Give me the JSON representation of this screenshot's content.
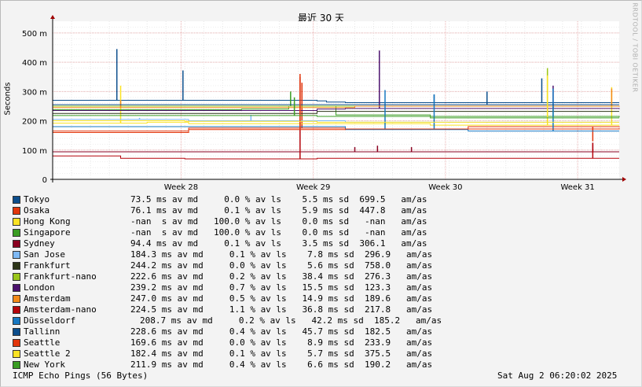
{
  "chart_data": {
    "type": "line",
    "title": "最近 30 天",
    "ylabel": "Seconds",
    "vertical_tag": "RRDTOOL / TOBI OETIKER",
    "y_ticks": [
      "0",
      "100 m",
      "200 m",
      "300 m",
      "400 m",
      "500 m"
    ],
    "ylim": [
      0,
      0.54
    ],
    "x_ticks": [
      "Week 28",
      "Week 29",
      "Week 30",
      "Week 31"
    ],
    "x_tick_days": [
      6.8,
      13.8,
      20.8,
      27.8
    ],
    "xlim_days": [
      0,
      30
    ],
    "grid": true,
    "series": [
      {
        "name": "Tokyo",
        "color": "#0c4e8c",
        "stats": "73.5 ms av md     0.0 % av ls    5.5 ms sd  699.5   am/as",
        "points": [
          [
            0,
            0.27
          ],
          [
            7,
            0.27
          ],
          [
            7.2,
            0.27
          ],
          [
            14,
            0.268
          ],
          [
            14.5,
            0.264
          ],
          [
            15.5,
            0.262
          ],
          [
            20,
            0.262
          ],
          [
            26,
            0.262
          ],
          [
            30,
            0.262
          ]
        ],
        "spikes": [
          [
            3.4,
            0.445
          ],
          [
            6.9,
            0.372
          ],
          [
            20.2,
            0.29
          ],
          [
            25.9,
            0.345
          ]
        ]
      },
      {
        "name": "Osaka",
        "color": "#e2360c",
        "stats": "76.1 ms av md     0.1 % av ls    5.9 ms sd  447.8   am/as",
        "points": [
          [
            0,
            0.16
          ],
          [
            7,
            0.16
          ],
          [
            7.2,
            0.175
          ],
          [
            14,
            0.175
          ],
          [
            15.5,
            0.172
          ],
          [
            22,
            0.18
          ],
          [
            30,
            0.178
          ]
        ],
        "spikes": [
          [
            13.2,
            0.33
          ],
          [
            28.6,
            0.13
          ]
        ]
      },
      {
        "name": "Hong Kong",
        "color": "#fbe324",
        "stats": "-nan  s av md   100.0 % av ls    0.0 ms sd   -nan   am/as",
        "points": [
          [
            0,
            0.192
          ],
          [
            5,
            0.195
          ],
          [
            7.2,
            0.19
          ],
          [
            14,
            0.19
          ],
          [
            20,
            0.185
          ],
          [
            30,
            0.185
          ]
        ],
        "spikes": [
          [
            3.6,
            0.32
          ],
          [
            26.2,
            0.37
          ],
          [
            29.6,
            0.315
          ]
        ]
      },
      {
        "name": "Singapore",
        "color": "#3a9d23",
        "stats": "-nan  s av md   100.0 % av ls    0.0 ms sd   -nan   am/as",
        "points": [
          [
            0,
            0.238
          ],
          [
            5,
            0.238
          ],
          [
            10,
            0.24
          ],
          [
            12.5,
            0.25
          ],
          [
            15,
            0.22
          ],
          [
            20,
            0.215
          ],
          [
            30,
            0.212
          ]
        ],
        "spikes": [
          [
            12.6,
            0.3
          ],
          [
            26.5,
            0.255
          ]
        ]
      },
      {
        "name": "Sydney",
        "color": "#8a0020",
        "stats": "94.4 ms av md     0.1 % av ls    3.5 ms sd  306.1   am/as",
        "points": [
          [
            0,
            0.094
          ],
          [
            7,
            0.094
          ],
          [
            14,
            0.094
          ],
          [
            22,
            0.094
          ],
          [
            30,
            0.094
          ]
        ],
        "spikes": [
          [
            16.0,
            0.11
          ],
          [
            17.2,
            0.115
          ],
          [
            19.0,
            0.11
          ],
          [
            28.6,
            0.125
          ]
        ]
      },
      {
        "name": "San Jose",
        "color": "#7eb9f5",
        "stats": "184.3 ms av md     0.1 % av ls    7.8 ms sd  296.9   am/as",
        "points": [
          [
            0,
            0.205
          ],
          [
            7,
            0.205
          ],
          [
            7.2,
            0.2
          ],
          [
            14,
            0.2
          ],
          [
            15.5,
            0.195
          ],
          [
            30,
            0.195
          ]
        ],
        "spikes": [
          [
            4.6,
            0.21
          ],
          [
            10.5,
            0.22
          ]
        ]
      },
      {
        "name": "Frankfurt",
        "color": "#2c3518",
        "stats": "244.2 ms av md     0.0 % av ls    5.6 ms sd  758.0   am/as",
        "points": [
          [
            0,
            0.225
          ],
          [
            7,
            0.225
          ],
          [
            14,
            0.232
          ],
          [
            20,
            0.232
          ],
          [
            30,
            0.232
          ]
        ],
        "spikes": []
      },
      {
        "name": "Frankfurt-nano",
        "color": "#9ac61a",
        "stats": "222.6 ms av md     0.2 % av ls   38.4 ms sd  276.3   am/as",
        "points": [
          [
            0,
            0.25
          ],
          [
            7,
            0.25
          ],
          [
            14,
            0.25
          ],
          [
            20,
            0.25
          ],
          [
            30,
            0.25
          ]
        ],
        "spikes": [
          [
            26.2,
            0.38
          ]
        ]
      },
      {
        "name": "London",
        "color": "#4c116e",
        "stats": "239.2 ms av md     0.7 % av ls   15.5 ms sd  123.3   am/as",
        "points": [
          [
            0,
            0.235
          ],
          [
            7,
            0.235
          ],
          [
            14,
            0.24
          ],
          [
            15.5,
            0.242
          ],
          [
            20,
            0.242
          ],
          [
            30,
            0.24
          ]
        ],
        "spikes": [
          [
            17.3,
            0.44
          ],
          [
            26.5,
            0.32
          ]
        ]
      },
      {
        "name": "Amsterdam",
        "color": "#f48b18",
        "stats": "247.0 ms av md     0.5 % av ls   14.9 ms sd  189.6   am/as",
        "points": [
          [
            0,
            0.245
          ],
          [
            7,
            0.245
          ],
          [
            14,
            0.245
          ],
          [
            16,
            0.25
          ],
          [
            30,
            0.248
          ]
        ],
        "spikes": [
          [
            3.6,
            0.27
          ],
          [
            29.6,
            0.31
          ]
        ]
      },
      {
        "name": "Amsterdam-nano",
        "color": "#b5040b",
        "stats": "224.5 ms av md     1.1 % av ls   36.8 ms sd  217.8   am/as",
        "points": [
          [
            0,
            0.08
          ],
          [
            3.5,
            0.08
          ],
          [
            3.6,
            0.072
          ],
          [
            7,
            0.07
          ],
          [
            14,
            0.072
          ],
          [
            30,
            0.072
          ]
        ],
        "spikes": [
          [
            13.1,
            0.35
          ],
          [
            28.6,
            0.125
          ]
        ]
      },
      {
        "name": "Düsseldorf",
        "color": "#1778c2",
        "stats": "208.7 ms av md     0.2 % av ls   42.2 ms sd  185.2   am/as",
        "points": [
          [
            0,
            0.18
          ],
          [
            7,
            0.18
          ],
          [
            14,
            0.18
          ],
          [
            15.5,
            0.17
          ],
          [
            22,
            0.165
          ],
          [
            30,
            0.165
          ]
        ],
        "spikes": [
          [
            17.6,
            0.305
          ],
          [
            20.2,
            0.29
          ],
          [
            26.5,
            0.31
          ]
        ]
      },
      {
        "name": "Tallinn",
        "color": "#0c4e8c",
        "stats": "228.6 ms av md     0.4 % av ls   45.7 ms sd  182.5   am/as",
        "points": [
          [
            0,
            0.255
          ],
          [
            7,
            0.255
          ],
          [
            14,
            0.255
          ],
          [
            20,
            0.255
          ],
          [
            30,
            0.255
          ]
        ],
        "spikes": [
          [
            23.0,
            0.3
          ]
        ]
      },
      {
        "name": "Seattle",
        "color": "#e2360c",
        "stats": "169.6 ms av md     0.0 % av ls    8.9 ms sd  233.9   am/as",
        "points": [
          [
            0,
            0.165
          ],
          [
            7,
            0.165
          ],
          [
            7.2,
            0.17
          ],
          [
            14,
            0.17
          ],
          [
            15.5,
            0.172
          ],
          [
            30,
            0.175
          ]
        ],
        "spikes": [
          [
            13.1,
            0.36
          ]
        ]
      },
      {
        "name": "Seattle 2",
        "color": "#fbe324",
        "stats": "182.4 ms av md     0.1 % av ls    5.7 ms sd  375.5   am/as",
        "points": [
          [
            0,
            0.2
          ],
          [
            7,
            0.198
          ],
          [
            14,
            0.195
          ],
          [
            20,
            0.195
          ],
          [
            30,
            0.195
          ]
        ],
        "spikes": [
          [
            26.2,
            0.355
          ]
        ]
      },
      {
        "name": "New York",
        "color": "#3a9d23",
        "stats": "211.9 ms av md     0.4 % av ls    6.6 ms sd  190.2   am/as",
        "points": [
          [
            0,
            0.218
          ],
          [
            7,
            0.218
          ],
          [
            14,
            0.215
          ],
          [
            20,
            0.21
          ],
          [
            30,
            0.21
          ]
        ],
        "spikes": [
          [
            12.8,
            0.28
          ]
        ]
      }
    ]
  },
  "footer": {
    "left": "ICMP Echo Pings (56 Bytes)",
    "right": "Sat Aug  2 06:20:02 2025"
  }
}
